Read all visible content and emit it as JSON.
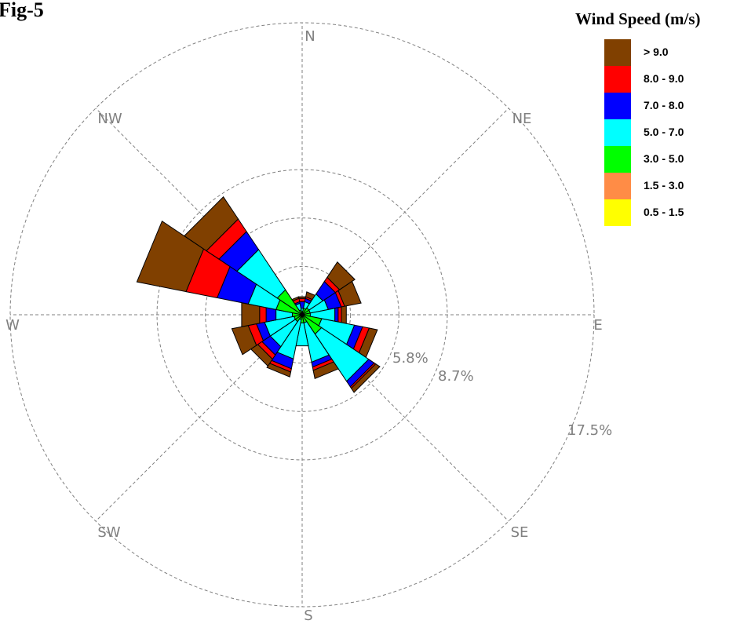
{
  "figure_label": "Fig-5",
  "chart_data": {
    "type": "wind-rose",
    "title": "",
    "legend_title": "Wind Speed (m/s)",
    "unit": "%",
    "ring_labels": [
      "5.8%",
      "8.7%",
      "17.5%"
    ],
    "rings": [
      2.9,
      5.8,
      8.7,
      17.5
    ],
    "direction_labels": [
      "N",
      "NE",
      "E",
      "SE",
      "S",
      "SW",
      "W",
      "NW"
    ],
    "direction_sectors": 16,
    "bins": [
      {
        "label": "0.5 - 1.5",
        "color": "#ffff00"
      },
      {
        "label": "1.5 - 3.0",
        "color": "#ff8c46"
      },
      {
        "label": "3.0 - 5.0",
        "color": "#00ff00"
      },
      {
        "label": "5.0 - 7.0",
        "color": "#00ffff"
      },
      {
        "label": "7.0 - 8.0",
        "color": "#0000ff"
      },
      {
        "label": "8.0 - 9.0",
        "color": "#ff0000"
      },
      {
        "label": "> 9.0",
        "color": "#804000"
      }
    ],
    "directions": [
      "N",
      "NNE",
      "NE",
      "ENE",
      "E",
      "ESE",
      "SE",
      "SSE",
      "S",
      "SSW",
      "SW",
      "WSW",
      "W",
      "WNW",
      "NW",
      "NNW"
    ],
    "cumulative": [
      [
        0.0,
        0.0,
        0.2,
        0.4,
        0.8,
        1.0,
        1.1
      ],
      [
        0.0,
        0.0,
        0.4,
        0.8,
        1.0,
        1.1,
        1.4
      ],
      [
        0.0,
        0.0,
        0.5,
        1.5,
        2.4,
        2.7,
        3.8
      ],
      [
        0.0,
        0.0,
        0.5,
        1.6,
        2.4,
        2.6,
        3.6
      ],
      [
        0.0,
        0.0,
        0.5,
        2.0,
        2.2,
        2.4,
        2.7
      ],
      [
        0.0,
        0.0,
        1.2,
        3.2,
        3.7,
        4.1,
        4.6
      ],
      [
        0.0,
        0.0,
        1.4,
        4.8,
        5.2,
        5.3,
        5.6
      ],
      [
        0.0,
        0.0,
        0.5,
        2.9,
        3.2,
        3.4,
        3.9
      ],
      [
        0.0,
        0.0,
        0.5,
        1.9,
        1.9,
        1.9,
        1.9
      ],
      [
        0.0,
        0.0,
        0.3,
        2.7,
        3.3,
        3.5,
        3.8
      ],
      [
        0.0,
        0.0,
        0.5,
        2.3,
        2.9,
        3.2,
        3.7
      ],
      [
        0.0,
        0.0,
        0.5,
        2.3,
        2.8,
        3.3,
        4.3
      ],
      [
        0.0,
        0.0,
        0.6,
        1.6,
        2.2,
        2.6,
        3.7
      ],
      [
        0.0,
        0.0,
        1.6,
        3.3,
        5.2,
        7.1,
        10.1
      ],
      [
        0.0,
        0.0,
        1.8,
        4.7,
        6.0,
        6.9,
        8.5
      ],
      [
        0.0,
        0.0,
        0.3,
        0.7,
        0.8,
        1.0,
        1.1
      ]
    ]
  }
}
